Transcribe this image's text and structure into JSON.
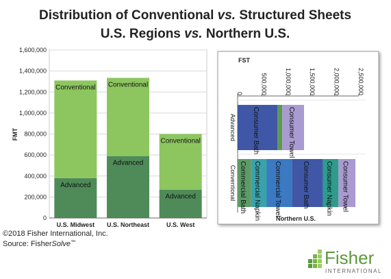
{
  "title": [
    [
      "Distribution of Conventional ",
      "vs.",
      " Structured Sheets"
    ],
    [
      "U.S. Regions ",
      "vs.",
      " Northern U.S."
    ]
  ],
  "chart_data": [
    {
      "type": "stacked-bar",
      "ylabel": "FMT",
      "categories": [
        "U.S. Midwest",
        "U.S. Northeast",
        "U.S. West"
      ],
      "series": [
        {
          "name": "Advanced",
          "color": "#4f8b58",
          "values": [
            380000,
            590000,
            270000
          ]
        },
        {
          "name": "Conventional",
          "color": "#8dc65f",
          "values": [
            930000,
            745000,
            530000
          ]
        }
      ],
      "ylim": [
        0,
        1600000
      ],
      "yticks": [
        0,
        {
          "value": 200000,
          "label": "200,000"
        },
        {
          "value": 400000,
          "label": "400,000"
        },
        {
          "value": 600000,
          "label": "600,000"
        },
        {
          "value": 800000,
          "label": "800,000"
        },
        {
          "value": 1000000,
          "label": "1,000,000"
        },
        {
          "value": 1200000,
          "label": "1,200,000"
        },
        {
          "value": 1400000,
          "label": "1,400,000"
        },
        {
          "value": 1600000,
          "label": "1,600,000"
        }
      ]
    },
    {
      "type": "stacked-barh",
      "xlabel": "FST",
      "group_label": "Northern U.S.",
      "bars": [
        {
          "category": "Advanced",
          "segments": [
            {
              "name": "Consumer Bath",
              "color": "#3f57a6",
              "value": 820000
            },
            {
              "name": null,
              "color": "#5b9a52",
              "value": 100000
            },
            {
              "name": "Consumer Towel",
              "color": "#a99bd1",
              "value": 450000
            }
          ]
        },
        {
          "category": "Conventional",
          "segments": [
            {
              "name": "Commercial Bath",
              "color": "#5e9a68",
              "value": 280000
            },
            {
              "name": "Commercial Napkin",
              "color": "#3aa2aa",
              "value": 320000
            },
            {
              "name": "Commercial Towel",
              "color": "#3b79c2",
              "value": 520000
            },
            {
              "name": "Consumer Bath",
              "color": "#3f57a6",
              "value": 640000
            },
            {
              "name": "Consumer Napkin",
              "color": "#2e9b8b",
              "value": 320000
            },
            {
              "name": "Consumer Towel",
              "color": "#a99bd1",
              "value": 350000
            }
          ]
        }
      ],
      "xlim": [
        0,
        2500000
      ],
      "xticks": [
        0,
        {
          "value": 500000,
          "label": "500,000"
        },
        {
          "value": 1000000,
          "label": "1,000,000"
        },
        {
          "value": 1500000,
          "label": "1,500,000"
        },
        {
          "value": 2000000,
          "label": "2,000,000"
        },
        {
          "value": 2500000,
          "label": "2,500,000"
        }
      ]
    }
  ],
  "footer": {
    "copyright": "©2018 Fisher International, Inc.",
    "source": [
      "Source: Fisher",
      "Solve",
      "™"
    ]
  },
  "logo": {
    "name": "Fisher",
    "sub": "INTERNATIONAL"
  }
}
